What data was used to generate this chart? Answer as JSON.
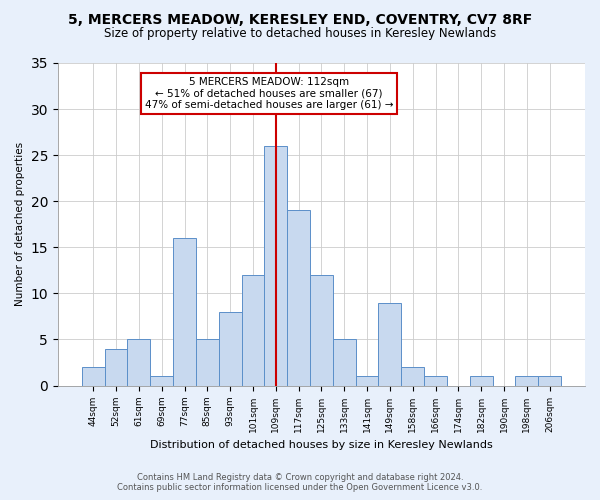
{
  "title": "5, MERCERS MEADOW, KERESLEY END, COVENTRY, CV7 8RF",
  "subtitle": "Size of property relative to detached houses in Keresley Newlands",
  "xlabel": "Distribution of detached houses by size in Keresley Newlands",
  "ylabel": "Number of detached properties",
  "categories": [
    "44sqm",
    "52sqm",
    "61sqm",
    "69sqm",
    "77sqm",
    "85sqm",
    "93sqm",
    "101sqm",
    "109sqm",
    "117sqm",
    "125sqm",
    "133sqm",
    "141sqm",
    "149sqm",
    "158sqm",
    "166sqm",
    "174sqm",
    "182sqm",
    "190sqm",
    "198sqm",
    "206sqm"
  ],
  "values": [
    2,
    4,
    5,
    1,
    16,
    5,
    8,
    12,
    26,
    19,
    12,
    5,
    1,
    9,
    2,
    1,
    0,
    1,
    0,
    1,
    1
  ],
  "bar_color": "#c8d9ef",
  "bar_edge_color": "#5b8fc9",
  "highlight_index": 8,
  "highlight_line_color": "#cc0000",
  "annotation_text": "5 MERCERS MEADOW: 112sqm\n← 51% of detached houses are smaller (67)\n47% of semi-detached houses are larger (61) →",
  "annotation_box_color": "#ffffff",
  "annotation_box_edge_color": "#cc0000",
  "ylim": [
    0,
    35
  ],
  "yticks": [
    0,
    5,
    10,
    15,
    20,
    25,
    30,
    35
  ],
  "footer_line1": "Contains HM Land Registry data © Crown copyright and database right 2024.",
  "footer_line2": "Contains public sector information licensed under the Open Government Licence v3.0.",
  "fig_bg_color": "#e8f0fb",
  "plot_bg_color": "#ffffff"
}
